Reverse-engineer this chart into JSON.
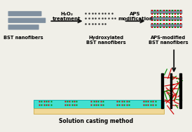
{
  "bg_color": "#f0efe8",
  "bst_fiber_color": "#8090a0",
  "hydroxyl_dot_color": "#303030",
  "aps_dot_color_red": "#cc0000",
  "aps_dot_color_green": "#008800",
  "arrow_color": "#111111",
  "label_h2o2": "H₂O₂\ntreatment",
  "label_aps": "APS\nmodification",
  "label_bst": "BST nanofibers",
  "label_hydroxy": "Hydroxylated\nBST nanofibers",
  "label_aps_mod": "APS-modified\nBST nanofibers",
  "label_solution": "Solution casting method",
  "film_color": "#40e0d0",
  "substrate_color": "#f0d898",
  "substrate_edge": "#c8a030",
  "film_edge": "#00aaaa"
}
